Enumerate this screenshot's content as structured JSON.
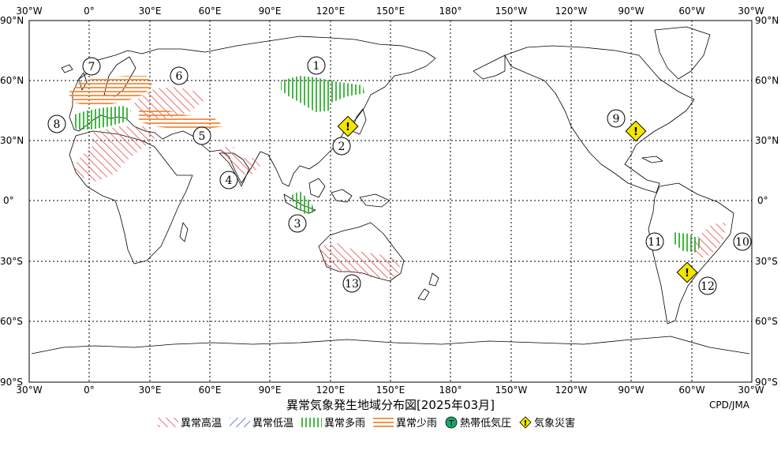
{
  "title": "異常気象発生地域分布図[2025年03月]",
  "credit": "CPD/JMA",
  "colors": {
    "hot": "#e8484d",
    "cold": "#3a5fd9",
    "wet": "#2fb02f",
    "dry": "#f08a3c",
    "cyclone": "#19a86a",
    "disaster": "#f2e600"
  },
  "axes": {
    "top_lon": [
      "30°W",
      "0°",
      "30°E",
      "60°E",
      "90°E",
      "120°E",
      "150°E",
      "180°",
      "150°W",
      "120°W",
      "90°W",
      "60°W",
      "30°W"
    ],
    "bottom_lon": [
      "30°W",
      "0°",
      "30°E",
      "60°E",
      "90°E",
      "120°E",
      "150°E",
      "180°",
      "150°W",
      "120°W",
      "90°W",
      "60°W",
      "30°W"
    ],
    "left_lat": [
      "90°N",
      "60°N",
      "30°N",
      "0°",
      "30°S",
      "60°S",
      "90°S"
    ],
    "right_lat": [
      "90°N",
      "60°N",
      "30°N",
      "0°",
      "30°S",
      "60°S",
      "90°S"
    ]
  },
  "legend": [
    {
      "key": "hot",
      "label": "異常高温"
    },
    {
      "key": "cold",
      "label": "異常低温"
    },
    {
      "key": "wet",
      "label": "異常多雨"
    },
    {
      "key": "dry",
      "label": "異常少雨"
    },
    {
      "key": "cyclone",
      "label": "熱帯低気圧",
      "symbol": "T"
    },
    {
      "key": "disaster",
      "label": "気象災害",
      "symbol": "!"
    }
  ],
  "region_labels": [
    "1",
    "2",
    "3",
    "4",
    "5",
    "6",
    "7",
    "8",
    "9",
    "10",
    "11",
    "12",
    "13"
  ]
}
